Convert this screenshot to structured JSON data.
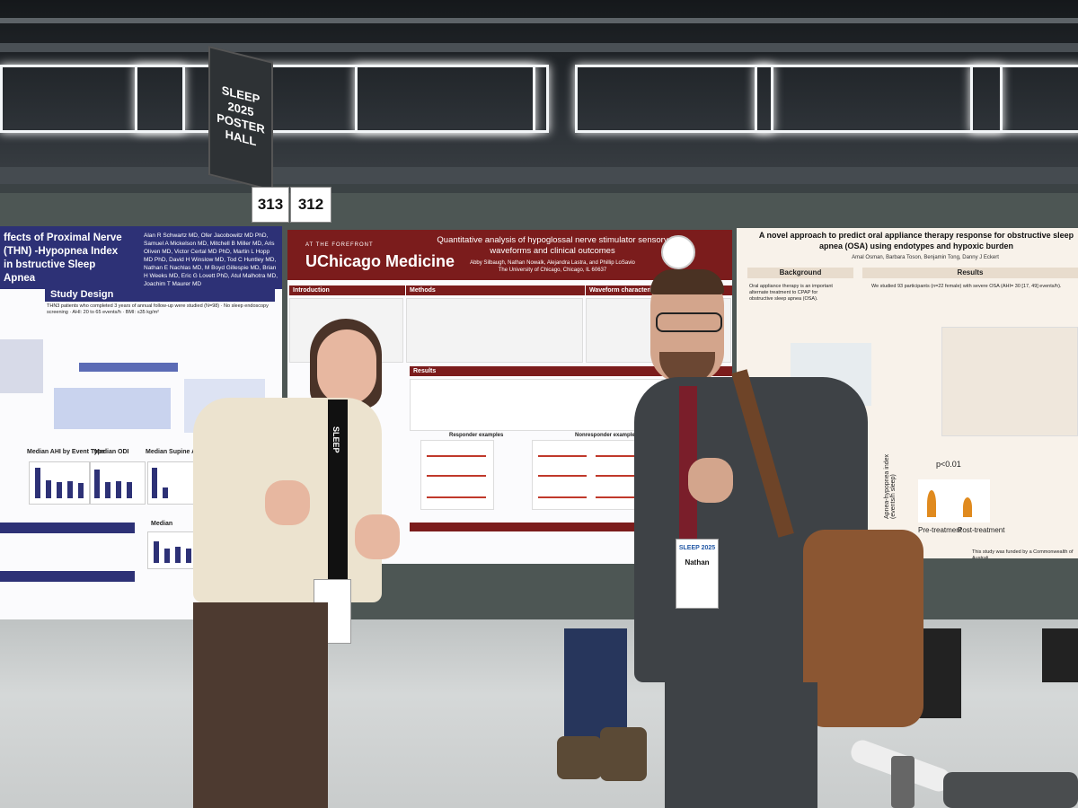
{
  "signage": {
    "hall_sign_line1": "SLEEP 2025",
    "hall_sign_line2": "POSTER HALL",
    "board_number_left": "313",
    "board_number_right": "312"
  },
  "poster_left": {
    "title": "ffects of Proximal Nerve (THN) -Hypopnea Index in bstructive Sleep Apnea",
    "authors": "Alan R Schwartz MD, Ofer Jacobowitz MD PhD, Samuel A Mickelson MD, Mitchell B Miller MD, Aris Oliven MD, Victor Certal MD PhD, Martin L Hopp MD PhD, David H Winslow MD, Tod C Huntley MD, Nathan E Nachlas MD, M Boyd Gillespie MD, Brian H Weeks MD, Eric G Lovett PhD, Atul Malhotra MD, Joachim T Maurer MD",
    "section_study_design": "Study Design",
    "study_design_text": "THN3 patients who completed 3 years of annual follow-up were studied (N=98) · No sleep endoscopy screening · AHI: 20 to 65 events/h · BMI: ≤35 kg/m²",
    "chart_labels": [
      "Median AHI by Event Type",
      "Median ODI",
      "Median Supine AHI",
      "Median"
    ]
  },
  "poster_mid": {
    "institution_small": "AT THE FOREFRONT",
    "institution": "UChicago Medicine",
    "title": "Quantitative analysis of hypoglossal nerve stimulator sensory waveforms and clinical outcomes",
    "authors": "Abby Silbaugh, Nathan Nowalk, Alejandra Lastra, and Phillip LoSavio",
    "affiliation": "The University of Chicago, Chicago, IL 60637",
    "sections": [
      "Introduction",
      "Methods",
      "Waveform characterization",
      "Results"
    ],
    "results_subtitle": "Responder examples",
    "results_subtitle2": "Nonresponder examples"
  },
  "poster_right": {
    "title": "A novel approach to predict oral appliance therapy response for obstructive sleep apnea (OSA) using endotypes and hypoxic burden",
    "authors": "Amal Osman, Barbara Toson, Benjamin Tong, Danny J Eckert",
    "sections": [
      "Background",
      "Results"
    ],
    "background_text": "Oral appliance therapy is an important alternate treatment to CPAP for obstructive sleep apnea (OSA).",
    "results_text": "We studied 93 participants (n=22 female) with severe OSA (AHI= 30 [17, 49] events/h).",
    "y_axis_label": "Apnea-hypopnea index (events/h sleep)",
    "p_value": "p<0.01",
    "x_labels": [
      "Pre-treatment",
      "Post-treatment"
    ],
    "footer": "This study was funded by a Commonwealth of Australi"
  },
  "badges": {
    "left_lanyard": "SLEEP",
    "right_badge_event": "SLEEP 2025",
    "right_badge_name": "Nathan"
  },
  "colors": {
    "left_poster_header": "#2d3176",
    "mid_poster_header": "#7b1c1c",
    "right_poster_bg": "#f8f2ea"
  }
}
